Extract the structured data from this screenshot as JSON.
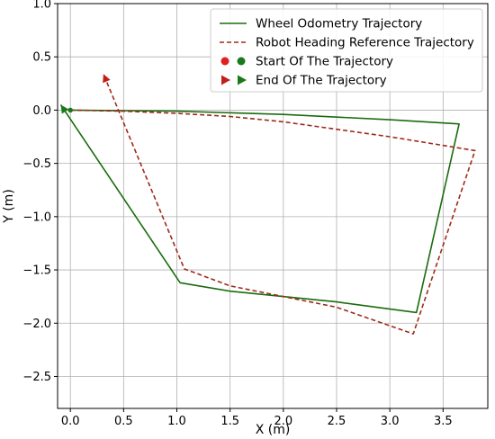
{
  "chart_data": {
    "type": "line",
    "xlabel": "X (m)",
    "ylabel": "Y (m)",
    "xlim": [
      -0.12,
      3.92
    ],
    "ylim": [
      -2.8,
      1.0
    ],
    "x_ticks": [
      0.0,
      0.5,
      1.0,
      1.5,
      2.0,
      2.5,
      3.0,
      3.5
    ],
    "x_tick_labels": [
      "0.0",
      "0.5",
      "1.0",
      "1.5",
      "2.0",
      "2.5",
      "3.0",
      "3.5"
    ],
    "y_ticks": [
      1.0,
      0.5,
      0.0,
      -0.5,
      -1.0,
      -1.5,
      -2.0,
      -2.5
    ],
    "y_tick_labels": [
      "1.0",
      "0.5",
      "0.0",
      "−0.5",
      "−1.0",
      "−1.5",
      "−2.0",
      "−2.5"
    ],
    "grid": true,
    "legend_position": "top-right",
    "series": [
      {
        "name": "Wheel Odometry Trajectory",
        "style": "solid",
        "color": "#1a6b0e",
        "x": [
          0.0,
          0.5,
          1.0,
          2.0,
          3.0,
          3.65,
          3.25,
          2.5,
          1.5,
          1.03,
          0.5,
          -0.09
        ],
        "y": [
          0.0,
          -0.005,
          -0.01,
          -0.04,
          -0.09,
          -0.13,
          -1.9,
          -1.8,
          -1.7,
          -1.62,
          -0.83,
          0.05
        ]
      },
      {
        "name": "Robot Heading Reference Trajectory",
        "style": "dashed",
        "color": "#9e2a1a",
        "x": [
          0.0,
          0.5,
          1.0,
          1.5,
          2.0,
          2.5,
          3.0,
          3.8,
          3.22,
          2.5,
          1.5,
          1.07,
          0.7,
          0.31
        ],
        "y": [
          0.0,
          -0.01,
          -0.03,
          -0.06,
          -0.11,
          -0.18,
          -0.25,
          -0.38,
          -2.1,
          -1.85,
          -1.65,
          -1.49,
          -0.6,
          0.34
        ]
      }
    ],
    "legend": [
      {
        "label": "Wheel Odometry Trajectory",
        "kind": "line-solid",
        "color": "#1a6b0e"
      },
      {
        "label": "Robot Heading Reference Trajectory",
        "kind": "line-dashed",
        "color": "#9e2a1a"
      },
      {
        "label": "Start Of The Trajectory",
        "kind": "dots",
        "colors": [
          "#e02020",
          "#1a7a1a"
        ]
      },
      {
        "label": "End Of The Trajectory",
        "kind": "triangles",
        "colors": [
          "#c02018",
          "#1a7a1a"
        ]
      }
    ],
    "start_marker": {
      "x": 0.0,
      "y": 0.0,
      "color": "#1a7a1a"
    },
    "end_markers": [
      {
        "series": 0,
        "x": -0.09,
        "y": 0.05,
        "color": "#1a7a1a"
      },
      {
        "series": 1,
        "x": 0.31,
        "y": 0.34,
        "color": "#c02018"
      }
    ]
  }
}
